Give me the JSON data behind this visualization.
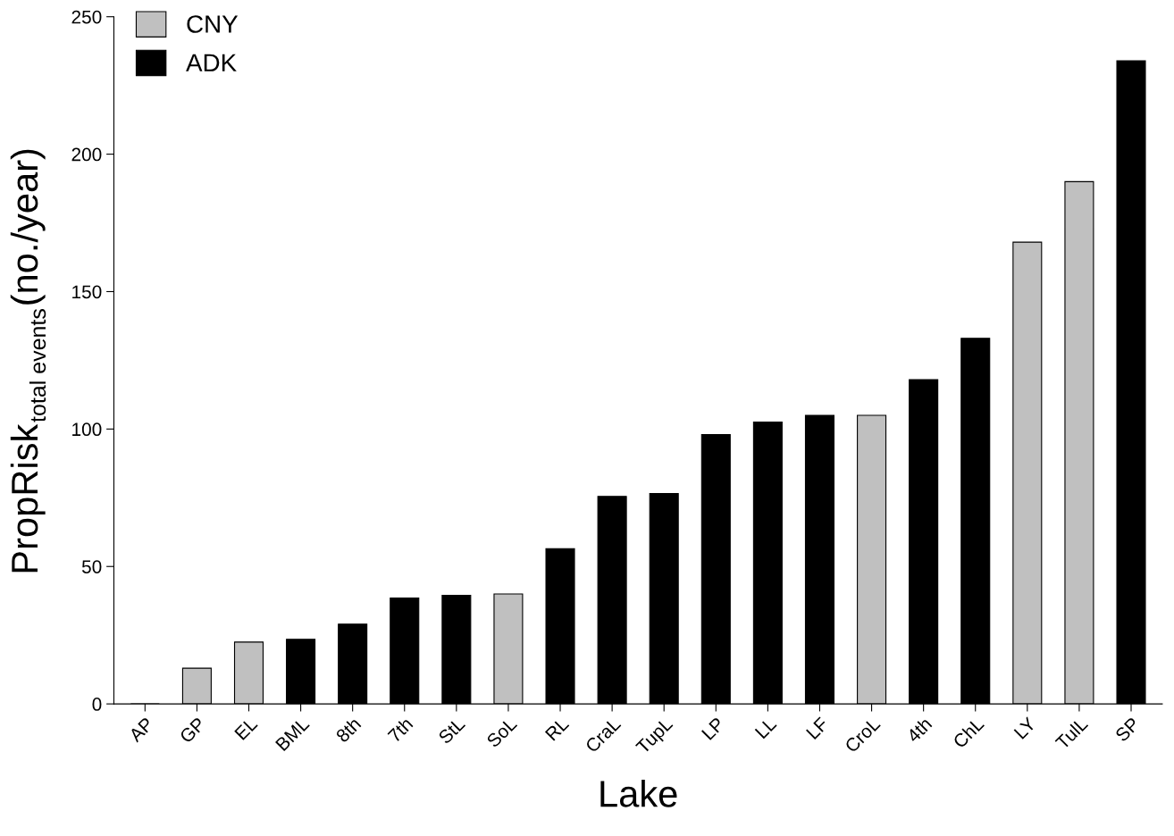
{
  "chart_data": {
    "type": "bar",
    "xlabel": "Lake",
    "ylabel": "PropRisk$_{total events}$(no./year)",
    "categories": [
      "AP",
      "GP",
      "EL",
      "BML",
      "8th",
      "7th",
      "StL",
      "SoL",
      "RL",
      "CraL",
      "TupL",
      "LP",
      "LL",
      "LF",
      "CroL",
      "4th",
      "ChL",
      "LY",
      "TulL",
      "SP"
    ],
    "series": [
      {
        "name": "CNY",
        "color": "#c0c0c0",
        "values": [
          null,
          13,
          22.5,
          null,
          null,
          null,
          null,
          40,
          null,
          null,
          null,
          null,
          null,
          null,
          105,
          null,
          null,
          168,
          190,
          null
        ]
      },
      {
        "name": "ADK",
        "color": "#000000",
        "values": [
          0,
          null,
          null,
          23.5,
          29,
          38.5,
          39.5,
          null,
          56.5,
          75.5,
          76.5,
          98,
          102.5,
          105,
          null,
          118,
          133,
          null,
          null,
          234
        ]
      }
    ],
    "ylim": [
      0,
      250
    ],
    "yticks": [
      0,
      50,
      100,
      150,
      200,
      250
    ],
    "grid": false,
    "legend": "top left"
  }
}
